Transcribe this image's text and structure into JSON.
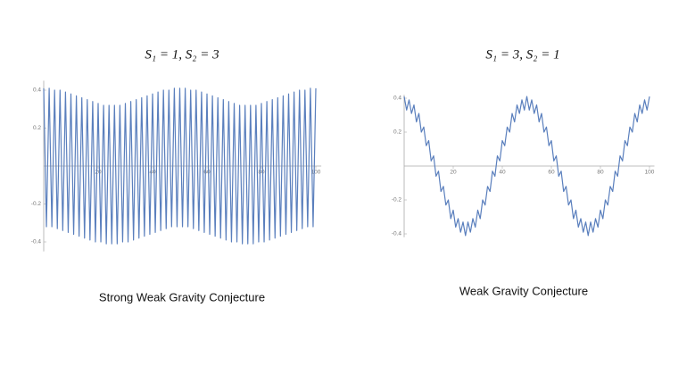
{
  "chart_data": [
    {
      "type": "line",
      "title": "S₁ = 1, S₂ = 3",
      "caption": "Strong Weak Gravity Conjecture",
      "color": "#5a7fbd",
      "xlim": [
        0,
        102
      ],
      "ylim": [
        -0.45,
        0.45
      ],
      "xticks": [
        20,
        40,
        60,
        80,
        100
      ],
      "yticks": [
        -0.4,
        -0.2,
        0.2,
        0.4
      ],
      "x": [
        0,
        1,
        2,
        3,
        4,
        5,
        6,
        7,
        8,
        9,
        10,
        11,
        12,
        13,
        14,
        15,
        16,
        17,
        18,
        19,
        20,
        21,
        22,
        23,
        24,
        25,
        26,
        27,
        28,
        29,
        30,
        31,
        32,
        33,
        34,
        35,
        36,
        37,
        38,
        39,
        40,
        41,
        42,
        43,
        44,
        45,
        46,
        47,
        48,
        49,
        50,
        51,
        52,
        53,
        54,
        55,
        56,
        57,
        58,
        59,
        60,
        61,
        62,
        63,
        64,
        65,
        66,
        67,
        68,
        69,
        70,
        71,
        72,
        73,
        74,
        75,
        76,
        77,
        78,
        79,
        80,
        81,
        82,
        83,
        84,
        85,
        86,
        87,
        88,
        89,
        90,
        91,
        92,
        93,
        94,
        95,
        96,
        97,
        98,
        99,
        100
      ],
      "values": [
        0.41,
        -0.32,
        0.41,
        -0.32,
        0.4,
        -0.33,
        0.4,
        -0.34,
        0.39,
        -0.35,
        0.38,
        -0.36,
        0.37,
        -0.37,
        0.36,
        -0.38,
        0.35,
        -0.39,
        0.34,
        -0.4,
        0.33,
        -0.4,
        0.32,
        -0.41,
        0.32,
        -0.41,
        0.32,
        -0.41,
        0.32,
        -0.4,
        0.33,
        -0.4,
        0.34,
        -0.39,
        0.35,
        -0.38,
        0.36,
        -0.37,
        0.37,
        -0.36,
        0.38,
        -0.35,
        0.39,
        -0.34,
        0.4,
        -0.33,
        0.4,
        -0.32,
        0.41,
        -0.32,
        0.41,
        -0.32,
        0.41,
        -0.32,
        0.4,
        -0.33,
        0.4,
        -0.34,
        0.39,
        -0.35,
        0.38,
        -0.36,
        0.37,
        -0.37,
        0.36,
        -0.38,
        0.35,
        -0.39,
        0.34,
        -0.4,
        0.33,
        -0.4,
        0.32,
        -0.41,
        0.32,
        -0.41,
        0.32,
        -0.41,
        0.32,
        -0.4,
        0.33,
        -0.4,
        0.34,
        -0.39,
        0.35,
        -0.38,
        0.36,
        -0.37,
        0.37,
        -0.36,
        0.38,
        -0.35,
        0.39,
        -0.34,
        0.4,
        -0.33,
        0.4,
        -0.32,
        0.41,
        -0.32,
        0.41
      ]
    },
    {
      "type": "line",
      "title": "S₁ = 3, S₂ = 1",
      "caption": "Weak Gravity Conjecture",
      "color": "#5a7fbd",
      "xlim": [
        0,
        102
      ],
      "ylim": [
        -0.42,
        0.42
      ],
      "xticks": [
        20,
        40,
        60,
        80,
        100
      ],
      "yticks": [
        -0.4,
        -0.2,
        0.2,
        0.4
      ],
      "x": [
        0,
        1,
        2,
        3,
        4,
        5,
        6,
        7,
        8,
        9,
        10,
        11,
        12,
        13,
        14,
        15,
        16,
        17,
        18,
        19,
        20,
        21,
        22,
        23,
        24,
        25,
        26,
        27,
        28,
        29,
        30,
        31,
        32,
        33,
        34,
        35,
        36,
        37,
        38,
        39,
        40,
        41,
        42,
        43,
        44,
        45,
        46,
        47,
        48,
        49,
        50,
        51,
        52,
        53,
        54,
        55,
        56,
        57,
        58,
        59,
        60,
        61,
        62,
        63,
        64,
        65,
        66,
        67,
        68,
        69,
        70,
        71,
        72,
        73,
        74,
        75,
        76,
        77,
        78,
        79,
        80,
        81,
        82,
        83,
        84,
        85,
        86,
        87,
        88,
        89,
        90,
        91,
        92,
        93,
        94,
        95,
        96,
        97,
        98,
        99,
        100
      ],
      "values": [
        0.41,
        0.33,
        0.39,
        0.31,
        0.36,
        0.26,
        0.31,
        0.2,
        0.23,
        0.12,
        0.15,
        0.03,
        0.06,
        -0.06,
        -0.03,
        -0.15,
        -0.12,
        -0.23,
        -0.2,
        -0.31,
        -0.26,
        -0.36,
        -0.31,
        -0.39,
        -0.33,
        -0.41,
        -0.33,
        -0.39,
        -0.31,
        -0.36,
        -0.26,
        -0.31,
        -0.2,
        -0.23,
        -0.12,
        -0.15,
        -0.03,
        -0.06,
        0.06,
        0.03,
        0.15,
        0.12,
        0.23,
        0.2,
        0.31,
        0.26,
        0.36,
        0.31,
        0.39,
        0.33,
        0.41,
        0.33,
        0.39,
        0.31,
        0.36,
        0.26,
        0.31,
        0.2,
        0.23,
        0.12,
        0.15,
        0.03,
        0.06,
        -0.06,
        -0.03,
        -0.15,
        -0.12,
        -0.23,
        -0.2,
        -0.31,
        -0.26,
        -0.36,
        -0.31,
        -0.39,
        -0.33,
        -0.41,
        -0.33,
        -0.39,
        -0.31,
        -0.36,
        -0.26,
        -0.31,
        -0.2,
        -0.23,
        -0.12,
        -0.15,
        -0.03,
        -0.06,
        0.06,
        0.03,
        0.15,
        0.12,
        0.23,
        0.2,
        0.31,
        0.26,
        0.36,
        0.31,
        0.39,
        0.33,
        0.41
      ]
    }
  ]
}
